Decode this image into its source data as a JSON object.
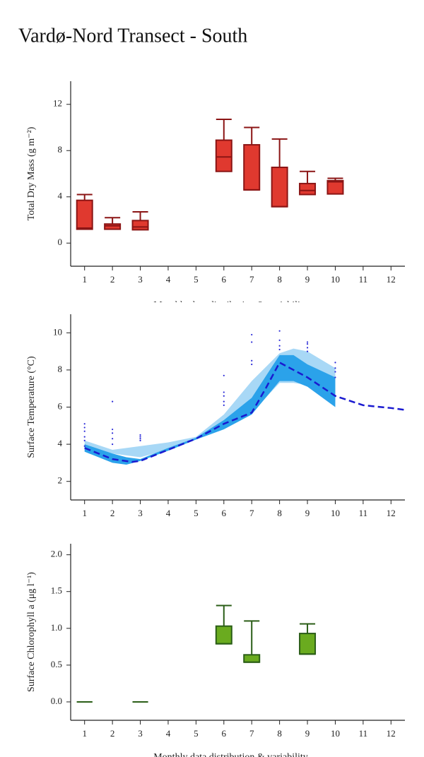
{
  "header": {
    "title": "Vardø-Nord Transect - South"
  },
  "chart_data": [
    {
      "type": "box",
      "ylabel": "Total Dry Mass (g m⁻²)",
      "xlabel": "Monthly data distribution & variability",
      "fill": "#e0392f",
      "stroke": "#8b1515",
      "x": [
        1,
        2,
        3,
        6,
        7,
        8,
        9,
        10
      ],
      "boxes": [
        [
          1.2,
          1.2,
          1.3,
          3.7,
          4.2
        ],
        [
          1.2,
          1.2,
          1.5,
          1.65,
          2.2
        ],
        [
          1.15,
          1.15,
          1.4,
          1.95,
          2.7
        ],
        [
          6.2,
          6.2,
          7.45,
          8.9,
          10.7
        ],
        [
          4.6,
          4.6,
          4.6,
          8.5,
          10.0
        ],
        [
          3.15,
          3.15,
          3.15,
          6.55,
          9.0
        ],
        [
          4.2,
          4.2,
          4.55,
          5.15,
          6.2
        ],
        [
          4.25,
          4.25,
          5.3,
          5.4,
          5.6
        ]
      ],
      "xlim": [
        0.5,
        12.5
      ],
      "xticks": [
        1,
        2,
        3,
        4,
        5,
        6,
        7,
        8,
        9,
        10,
        11,
        12
      ],
      "ylim": [
        -2,
        14
      ],
      "yticks": [
        0,
        4,
        8,
        12
      ]
    },
    {
      "type": "line",
      "ylabel": "Surface Temperature (°C)",
      "bands": [
        {
          "color": "#a8d8f6",
          "x": [
            1,
            2,
            3,
            4,
            5,
            6,
            7,
            8,
            8.5,
            9,
            10
          ],
          "upper": [
            4.2,
            3.7,
            3.9,
            4.1,
            4.4,
            5.6,
            7.4,
            8.9,
            9.15,
            9.0,
            8.1
          ],
          "lower": [
            3.8,
            3.5,
            3.3,
            3.7,
            4.3,
            5.0,
            5.7,
            7.3,
            7.3,
            7.2,
            6.3
          ]
        },
        {
          "color": "#2ba2ea",
          "x": [
            1,
            2,
            2.5,
            3,
            4,
            5,
            6,
            7,
            8,
            8.5,
            9,
            10
          ],
          "upper": [
            4.0,
            3.5,
            3.3,
            3.2,
            3.8,
            4.35,
            5.3,
            6.5,
            8.8,
            8.8,
            8.3,
            7.6
          ],
          "lower": [
            3.6,
            3.0,
            2.9,
            3.1,
            3.65,
            4.25,
            4.8,
            5.6,
            7.4,
            7.4,
            7.1,
            6.0
          ]
        }
      ],
      "series": [
        {
          "color": "#1a1ad0",
          "x": [
            1,
            2,
            2.7,
            3,
            4,
            5,
            6,
            7,
            7.5,
            8,
            9,
            10,
            11,
            12,
            12.5
          ],
          "values": [
            3.8,
            3.2,
            3.05,
            3.1,
            3.7,
            4.3,
            5.1,
            5.7,
            7.0,
            8.4,
            7.6,
            6.6,
            6.1,
            5.95,
            5.85
          ]
        }
      ],
      "points": {
        "color": "#2a2ad8",
        "x": [
          1,
          1,
          1,
          1,
          1,
          1,
          2,
          2,
          2,
          2,
          2,
          3,
          3,
          3,
          3,
          6,
          6,
          6,
          6,
          6,
          7,
          7,
          7,
          7,
          8,
          8,
          8,
          8,
          9,
          9,
          9,
          9,
          10,
          10,
          10,
          10
        ],
        "y": [
          3.9,
          4.2,
          4.4,
          4.7,
          4.9,
          5.1,
          4.0,
          4.3,
          4.6,
          4.8,
          6.3,
          4.2,
          4.3,
          4.4,
          4.5,
          6.1,
          6.3,
          6.6,
          6.8,
          7.7,
          8.3,
          8.5,
          9.5,
          9.9,
          9.1,
          9.3,
          9.6,
          10.1,
          9.0,
          9.2,
          9.4,
          9.5,
          7.6,
          7.9,
          8.1,
          8.4
        ]
      },
      "xlim": [
        0.5,
        12.5
      ],
      "xticks": [
        1,
        2,
        3,
        4,
        5,
        6,
        7,
        8,
        9,
        10,
        11,
        12
      ],
      "ylim": [
        1,
        11
      ],
      "yticks": [
        2,
        4,
        6,
        8,
        10
      ]
    },
    {
      "type": "box",
      "ylabel": "Surface Chlorophyll a (μg l⁻¹)",
      "xlabel": "Monthly data distribution & variability",
      "fill": "#6aab1f",
      "stroke": "#2b5e17",
      "x": [
        1,
        3,
        6,
        7,
        9
      ],
      "boxes": [
        [
          0,
          0,
          0,
          0,
          0
        ],
        [
          0,
          0,
          0,
          0,
          0
        ],
        [
          0.79,
          0.79,
          0.79,
          1.03,
          1.31
        ],
        [
          0.54,
          0.54,
          0.54,
          0.64,
          1.1
        ],
        [
          0.65,
          0.65,
          0.65,
          0.93,
          1.06
        ]
      ],
      "xlim": [
        0.5,
        12.5
      ],
      "xticks": [
        1,
        2,
        3,
        4,
        5,
        6,
        7,
        8,
        9,
        10,
        11,
        12
      ],
      "ylim": [
        -0.25,
        2.15
      ],
      "yticks": [
        {
          "value": 0,
          "label": "0.0"
        },
        {
          "value": 0.5,
          "label": "0.5"
        },
        {
          "value": 1,
          "label": "1.0"
        },
        {
          "value": 1.5,
          "label": "1.5"
        },
        {
          "value": 2,
          "label": "2.0"
        }
      ]
    }
  ]
}
